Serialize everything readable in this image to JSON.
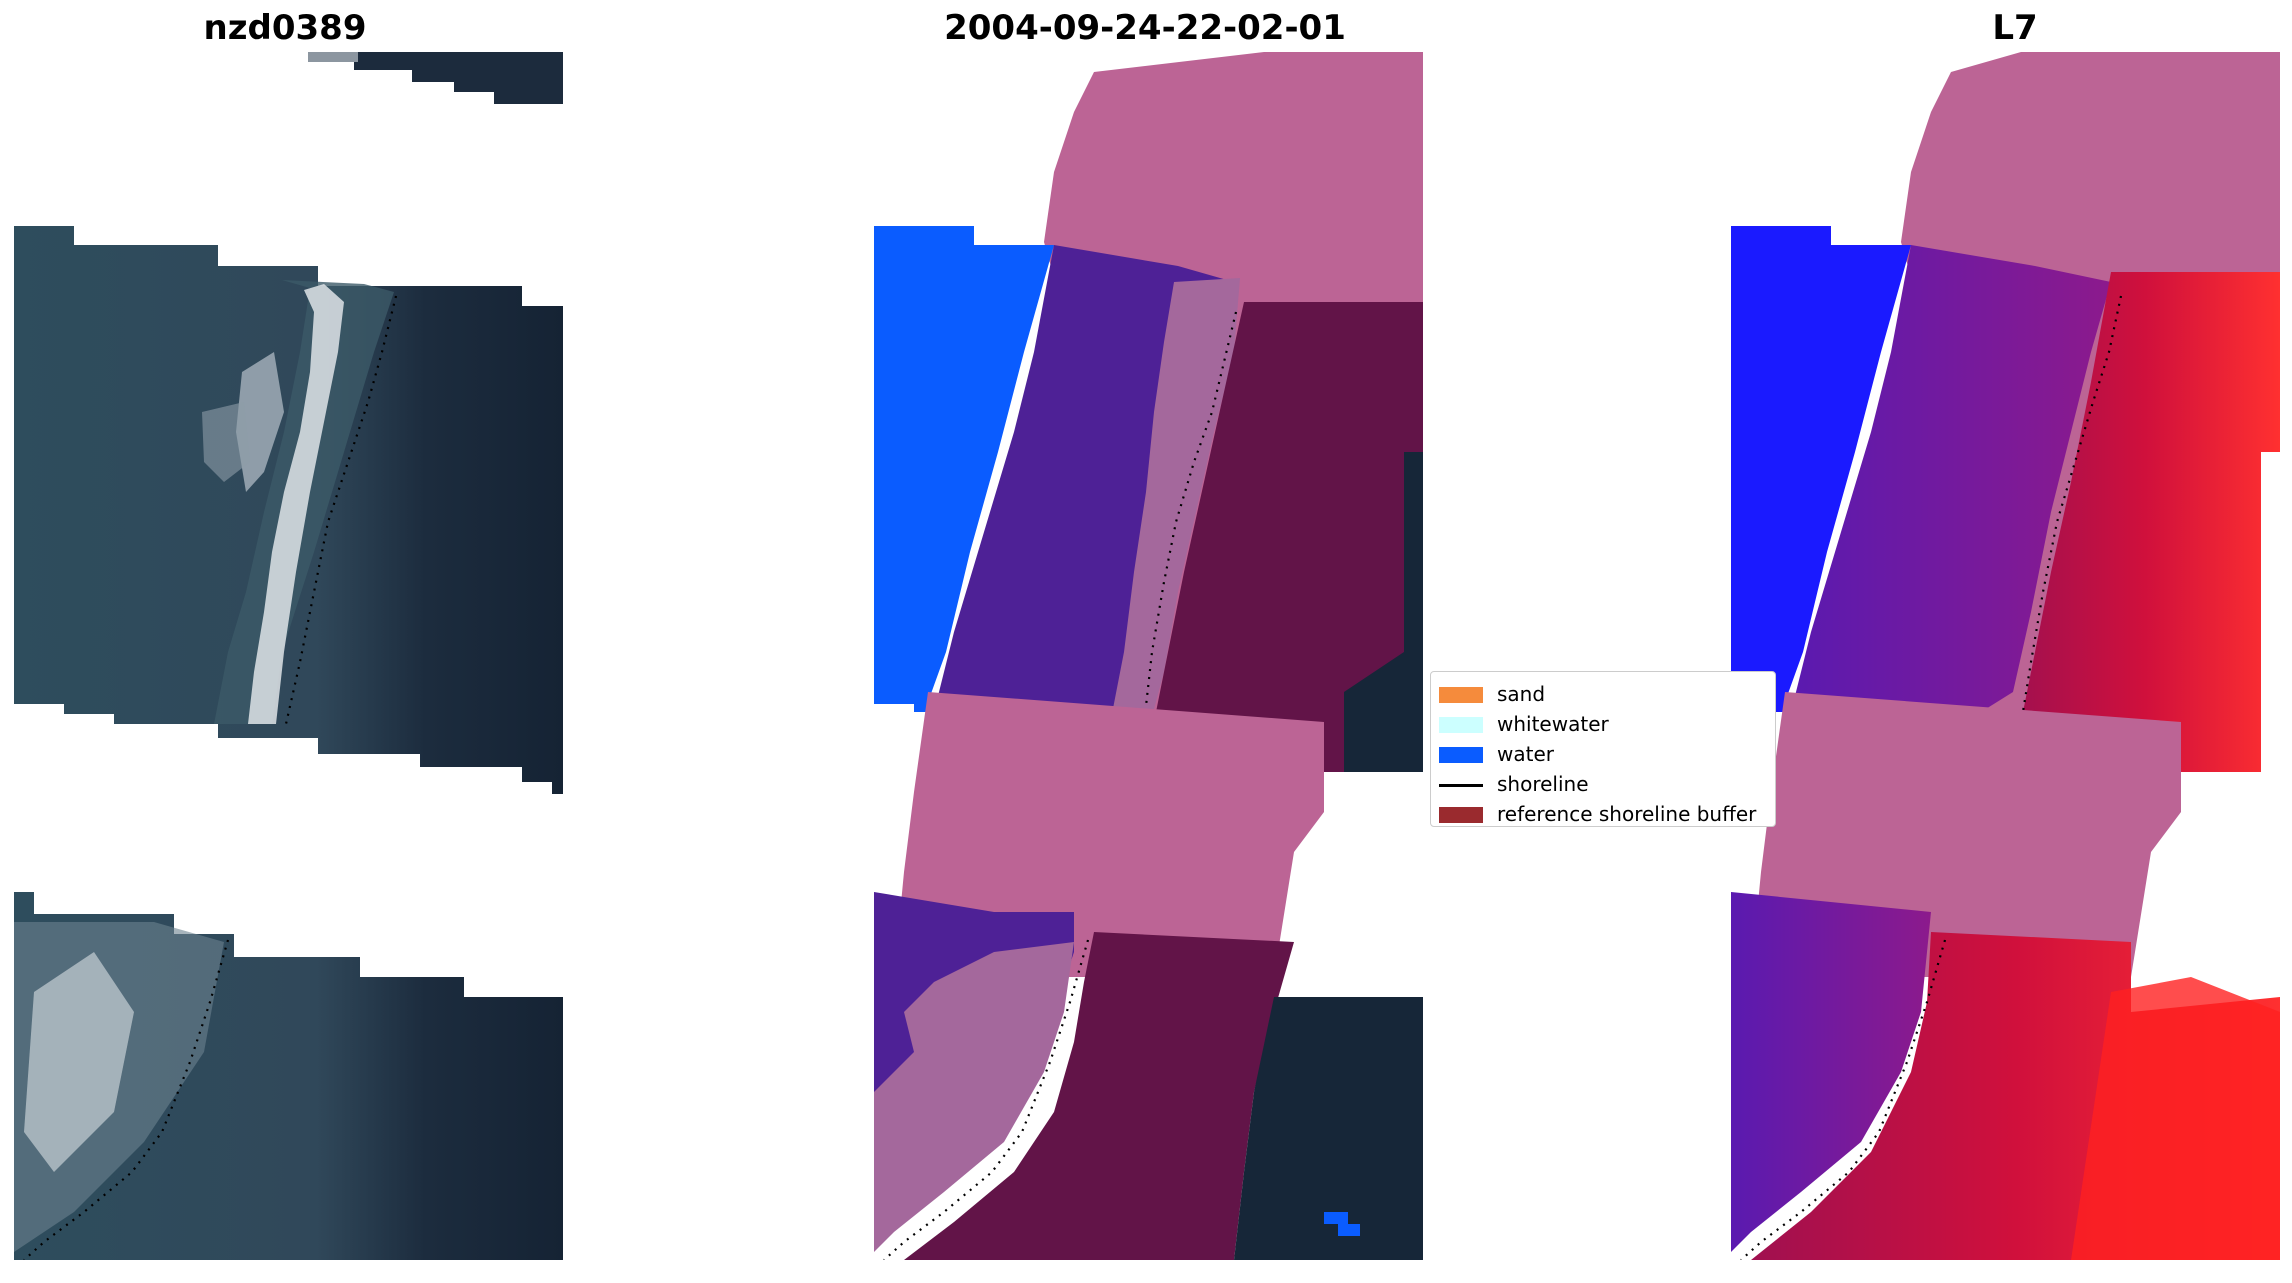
{
  "titles": {
    "left": "nzd0389",
    "middle": "2004-09-24-22-02-01",
    "right": "L7"
  },
  "legend": {
    "items": [
      {
        "label": "sand",
        "color": "#f58b3c",
        "kind": "patch"
      },
      {
        "label": "whitewater",
        "color": "#ccffff",
        "kind": "patch"
      },
      {
        "label": "water",
        "color": "#0a5cff",
        "kind": "patch"
      },
      {
        "label": "shoreline",
        "color": "#000000",
        "kind": "line"
      },
      {
        "label": "reference shoreline buffer",
        "color": "#9a2a2e",
        "kind": "patch"
      }
    ]
  },
  "colors": {
    "ocean_dark": "#162638",
    "land_teal": "#2e4b5a",
    "surf_white": "#d8dde2",
    "buffer_pink": "#bc6495",
    "class_purple": "#4e2196",
    "class_sand_mauve": "#a4689c",
    "class_dark_ocean": "#621448",
    "water_blue": "#0a5cff",
    "mndwi_blue": "#1a1aff",
    "mndwi_purple": "#6a1aa0",
    "mndwi_red": "#d01040"
  }
}
